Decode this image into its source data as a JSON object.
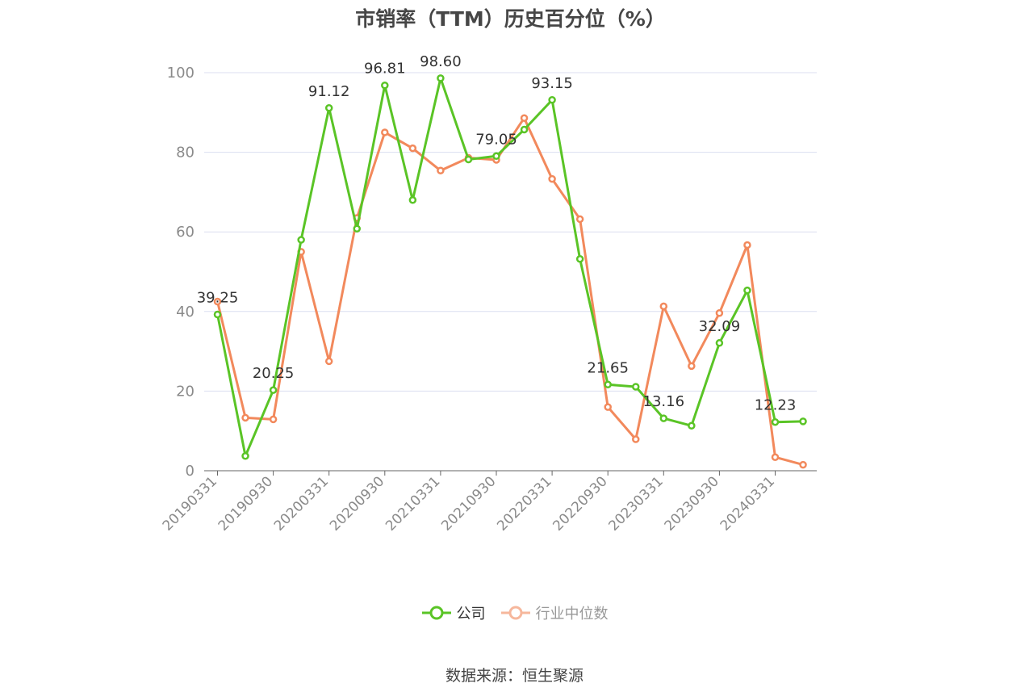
{
  "title": "市销率（TTM）历史百分位（%）",
  "source": "数据来源：恒生聚源",
  "colors": {
    "company": "#5ac426",
    "industry": "#f2895c",
    "industry_legend": "#f6b79c",
    "grid": "#dcdff0",
    "axis": "#666666",
    "tick_text": "#8a8a8a"
  },
  "legend": [
    {
      "name": "公司",
      "color": "#5ac426"
    },
    {
      "name": "行业中位数",
      "color": "#f6b79c"
    }
  ],
  "chart_data": {
    "type": "line",
    "title": "市销率（TTM）历史百分位（%）",
    "xlabel": "",
    "ylabel": "",
    "ylim": [
      0,
      100
    ],
    "yticks": [
      0,
      20,
      40,
      60,
      80,
      100
    ],
    "grid": true,
    "legend_position": "bottom",
    "x": [
      "20190331",
      "20190630",
      "20190930",
      "20191231",
      "20200331",
      "20200630",
      "20200930",
      "20201231",
      "20210331",
      "20210630",
      "20210930",
      "20211231",
      "20220331",
      "20220630",
      "20220930",
      "20221231",
      "20230331",
      "20230630",
      "20230930",
      "20231231",
      "20240331",
      "20240630"
    ],
    "xtick_labels": [
      "20190331",
      "20190930",
      "20200331",
      "20200930",
      "20210331",
      "20210930",
      "20220331",
      "20220930",
      "20230331",
      "20230930",
      "20240331"
    ],
    "series": [
      {
        "name": "公司",
        "color": "#5ac426",
        "values": [
          39.25,
          3.7,
          20.25,
          58.0,
          91.12,
          60.8,
          96.81,
          68.0,
          98.6,
          78.2,
          79.05,
          85.7,
          93.15,
          53.2,
          21.65,
          21.1,
          13.16,
          11.3,
          32.09,
          45.3,
          12.23,
          12.4
        ],
        "labels": [
          {
            "index": 0,
            "text": "39.25"
          },
          {
            "index": 2,
            "text": "20.25"
          },
          {
            "index": 4,
            "text": "91.12"
          },
          {
            "index": 6,
            "text": "96.81"
          },
          {
            "index": 8,
            "text": "98.60"
          },
          {
            "index": 10,
            "text": "79.05"
          },
          {
            "index": 12,
            "text": "93.15"
          },
          {
            "index": 14,
            "text": "21.65"
          },
          {
            "index": 16,
            "text": "13.16"
          },
          {
            "index": 18,
            "text": "32.09"
          },
          {
            "index": 20,
            "text": "12.23"
          }
        ]
      },
      {
        "name": "行业中位数",
        "color": "#f2895c",
        "values": [
          42.5,
          13.3,
          12.9,
          55.0,
          27.5,
          63.5,
          85.0,
          81.0,
          75.4,
          78.6,
          78.1,
          88.6,
          73.3,
          63.2,
          16.0,
          7.9,
          41.3,
          26.3,
          39.6,
          56.7,
          3.4,
          1.5
        ]
      }
    ]
  }
}
